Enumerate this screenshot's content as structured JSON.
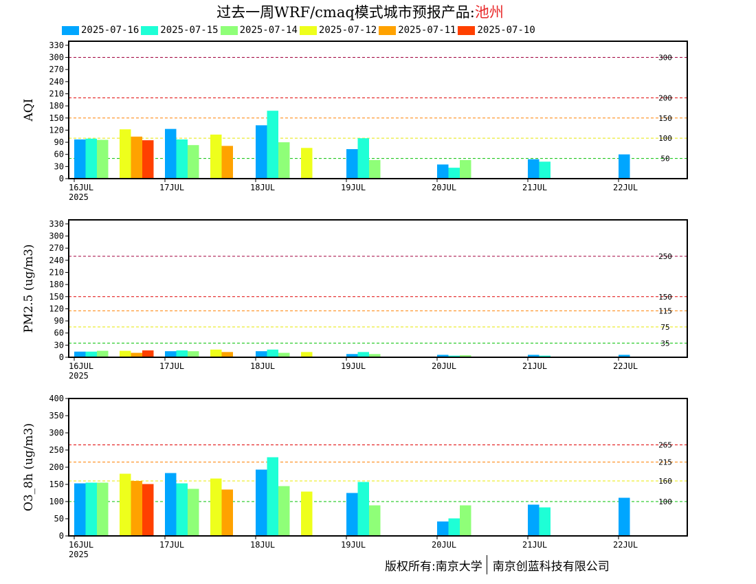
{
  "title": {
    "main": "过去一周WRF/cmaq模式城市预报产品:",
    "city": "池州"
  },
  "legend": [
    {
      "label": "2025-07-16",
      "color": "#00a6ff"
    },
    {
      "label": "2025-07-15",
      "color": "#1effd6"
    },
    {
      "label": "2025-07-14",
      "color": "#8fff78"
    },
    {
      "label": "2025-07-12",
      "color": "#eeff1c"
    },
    {
      "label": "2025-07-11",
      "color": "#ffa200"
    },
    {
      "label": "2025-07-10",
      "color": "#ff4000"
    }
  ],
  "footer": {
    "left": "版权所有:南京大学",
    "right": "南京创蓝科技有限公司"
  },
  "chart_data": [
    {
      "type": "bar",
      "ylabel": "AQI",
      "ylim": [
        0,
        340
      ],
      "yticks": [
        0,
        30,
        60,
        90,
        120,
        150,
        180,
        210,
        240,
        270,
        300,
        330
      ],
      "x_ticks": [
        "16JUL",
        "17JUL",
        "18JUL",
        "19JUL",
        "20JUL",
        "21JUL",
        "22JUL"
      ],
      "x_year": "2025",
      "thresholds": [
        {
          "value": 300,
          "label": "300",
          "color": "#a0003c"
        },
        {
          "value": 200,
          "label": "200",
          "color": "#e00000"
        },
        {
          "value": 150,
          "label": "150",
          "color": "#ff8000"
        },
        {
          "value": 100,
          "label": "100",
          "color": "#e8e800"
        },
        {
          "value": 50,
          "label": "50",
          "color": "#00c000"
        }
      ],
      "series": [
        {
          "name": "2025-07-16",
          "color": "#00a6ff",
          "values": [
            [
              0.0,
              97
            ],
            [
              1.0,
              123
            ],
            [
              2.0,
              132
            ],
            [
              3.0,
              73
            ],
            [
              4.0,
              35
            ],
            [
              5.0,
              48
            ],
            [
              6.0,
              60
            ]
          ]
        },
        {
          "name": "2025-07-15",
          "color": "#1effd6",
          "values": [
            [
              0.0,
              99
            ],
            [
              1.0,
              97
            ],
            [
              2.0,
              168
            ],
            [
              3.0,
              100
            ],
            [
              4.0,
              27
            ],
            [
              5.0,
              42
            ]
          ]
        },
        {
          "name": "2025-07-14",
          "color": "#8fff78",
          "values": [
            [
              0.0,
              96
            ],
            [
              1.0,
              83
            ],
            [
              2.0,
              90
            ],
            [
              3.0,
              46
            ],
            [
              4.0,
              46
            ]
          ]
        },
        {
          "name": "2025-07-12",
          "color": "#eeff1c",
          "values": [
            [
              0.5,
              122
            ],
            [
              1.5,
              109
            ],
            [
              2.5,
              76
            ]
          ]
        },
        {
          "name": "2025-07-11",
          "color": "#ffa200",
          "values": [
            [
              0.5,
              104
            ],
            [
              1.5,
              81
            ]
          ]
        },
        {
          "name": "2025-07-10",
          "color": "#ff4000",
          "values": [
            [
              0.5,
              95
            ]
          ]
        }
      ]
    },
    {
      "type": "bar",
      "ylabel": "PM2.5 (ug/m3)",
      "ylim": [
        0,
        340
      ],
      "yticks": [
        0,
        30,
        60,
        90,
        120,
        150,
        180,
        210,
        240,
        270,
        300,
        330
      ],
      "x_ticks": [
        "16JUL",
        "17JUL",
        "18JUL",
        "19JUL",
        "20JUL",
        "21JUL",
        "22JUL"
      ],
      "x_year": "2025",
      "thresholds": [
        {
          "value": 250,
          "label": "250",
          "color": "#a0003c"
        },
        {
          "value": 150,
          "label": "150",
          "color": "#e00000"
        },
        {
          "value": 115,
          "label": "115",
          "color": "#ff8000"
        },
        {
          "value": 75,
          "label": "75",
          "color": "#e8e800"
        },
        {
          "value": 35,
          "label": "35",
          "color": "#00c000"
        }
      ],
      "series": [
        {
          "name": "2025-07-16",
          "color": "#00a6ff",
          "values": [
            [
              0.0,
              14
            ],
            [
              1.0,
              15
            ],
            [
              2.0,
              15
            ],
            [
              3.0,
              8
            ],
            [
              4.0,
              6
            ],
            [
              5.0,
              6
            ],
            [
              6.0,
              6
            ]
          ]
        },
        {
          "name": "2025-07-15",
          "color": "#1effd6",
          "values": [
            [
              0.0,
              14
            ],
            [
              1.0,
              17
            ],
            [
              2.0,
              19
            ],
            [
              3.0,
              13
            ],
            [
              4.0,
              4
            ],
            [
              5.0,
              4
            ]
          ]
        },
        {
          "name": "2025-07-14",
          "color": "#8fff78",
          "values": [
            [
              0.0,
              16
            ],
            [
              1.0,
              15
            ],
            [
              2.0,
              11
            ],
            [
              3.0,
              8
            ],
            [
              4.0,
              5
            ]
          ]
        },
        {
          "name": "2025-07-12",
          "color": "#eeff1c",
          "values": [
            [
              0.5,
              16
            ],
            [
              1.5,
              19
            ],
            [
              2.5,
              13
            ]
          ]
        },
        {
          "name": "2025-07-11",
          "color": "#ffa200",
          "values": [
            [
              0.5,
              11
            ],
            [
              1.5,
              13
            ]
          ]
        },
        {
          "name": "2025-07-10",
          "color": "#ff4000",
          "values": [
            [
              0.5,
              17
            ]
          ]
        }
      ]
    },
    {
      "type": "bar",
      "ylabel": "O3_8h (ug/m3)",
      "ylim": [
        0,
        400
      ],
      "yticks": [
        0,
        50,
        100,
        150,
        200,
        250,
        300,
        350,
        400
      ],
      "x_ticks": [
        "16JUL",
        "17JUL",
        "18JUL",
        "19JUL",
        "20JUL",
        "21JUL",
        "22JUL"
      ],
      "x_year": "2025",
      "thresholds": [
        {
          "value": 265,
          "label": "265",
          "color": "#e00000"
        },
        {
          "value": 215,
          "label": "215",
          "color": "#ff8000"
        },
        {
          "value": 160,
          "label": "160",
          "color": "#e8e800"
        },
        {
          "value": 100,
          "label": "100",
          "color": "#00c000"
        }
      ],
      "series": [
        {
          "name": "2025-07-16",
          "color": "#00a6ff",
          "values": [
            [
              0.0,
              153
            ],
            [
              1.0,
              183
            ],
            [
              2.0,
              193
            ],
            [
              3.0,
              125
            ],
            [
              4.0,
              42
            ],
            [
              5.0,
              91
            ],
            [
              6.0,
              111
            ]
          ]
        },
        {
          "name": "2025-07-15",
          "color": "#1effd6",
          "values": [
            [
              0.0,
              155
            ],
            [
              1.0,
              153
            ],
            [
              2.0,
              229
            ],
            [
              3.0,
              157
            ],
            [
              4.0,
              51
            ],
            [
              5.0,
              83
            ]
          ]
        },
        {
          "name": "2025-07-14",
          "color": "#8fff78",
          "values": [
            [
              0.0,
              155
            ],
            [
              1.0,
              137
            ],
            [
              2.0,
              145
            ],
            [
              3.0,
              89
            ],
            [
              4.0,
              89
            ]
          ]
        },
        {
          "name": "2025-07-12",
          "color": "#eeff1c",
          "values": [
            [
              0.5,
              181
            ],
            [
              1.5,
              167
            ],
            [
              2.5,
              129
            ]
          ]
        },
        {
          "name": "2025-07-11",
          "color": "#ffa200",
          "values": [
            [
              0.5,
              160
            ],
            [
              1.5,
              135
            ]
          ]
        },
        {
          "name": "2025-07-10",
          "color": "#ff4000",
          "values": [
            [
              0.5,
              151
            ]
          ]
        }
      ]
    }
  ]
}
